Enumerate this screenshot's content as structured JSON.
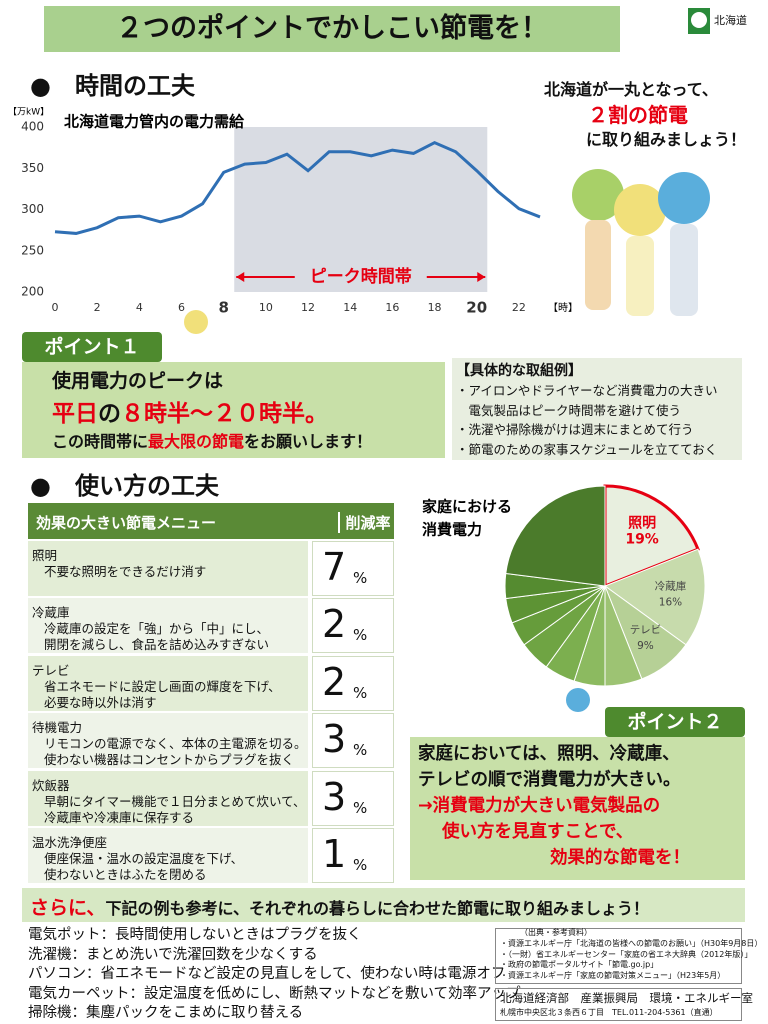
{
  "header": {
    "title": "２つのポイントでかしこい節電を！",
    "logo": "北海道"
  },
  "section1": {
    "heading": "●　時間の工夫"
  },
  "speech": {
    "line1": "北海道が一丸となって、",
    "highlight": "２割の節電",
    "line2": "に取り組みましょう！"
  },
  "chart_data": [
    {
      "type": "line",
      "title": "北海道電力管内の電力需給",
      "y_unit": "【万kW】",
      "x_unit": "【時】",
      "x": [
        0,
        1,
        2,
        3,
        4,
        5,
        6,
        7,
        8,
        9,
        10,
        11,
        12,
        13,
        14,
        15,
        16,
        17,
        18,
        19,
        20,
        21,
        22,
        23
      ],
      "values": [
        273,
        271,
        278,
        290,
        292,
        285,
        292,
        307,
        345,
        355,
        357,
        367,
        347,
        370,
        370,
        365,
        372,
        368,
        381,
        370,
        347,
        322,
        301,
        291
      ],
      "color": "#2f6fb4",
      "xlim": [
        0,
        23
      ],
      "ylim": [
        200,
        400
      ],
      "yticks": [
        200,
        250,
        300,
        350,
        400
      ],
      "xticks": [
        0,
        2,
        4,
        6,
        8,
        10,
        12,
        14,
        16,
        18,
        20,
        22
      ],
      "xticks_bold": [
        8,
        20
      ],
      "shade": {
        "from": 8.5,
        "to": 20.5,
        "label": "ピーク時間帯",
        "color": "#d9dce3",
        "label_color": "#e60012"
      }
    },
    {
      "type": "pie",
      "title_lines": [
        "家庭における",
        "消費電力"
      ],
      "categories": [
        "照明",
        "冷蔵庫",
        "テレビ",
        null,
        null,
        null,
        null,
        null,
        null,
        null,
        null
      ],
      "values": [
        19,
        16,
        9,
        6,
        5,
        5,
        5,
        4,
        4,
        4,
        23
      ],
      "value_labels": [
        "19%",
        "16%",
        "9%",
        null,
        null,
        null,
        null,
        null,
        null,
        null,
        null
      ],
      "colors": [
        "#e8efdf",
        "#c7dbac",
        "#b6d096",
        "#9dc373",
        "#8cba60",
        "#7caf4f",
        "#6fa443",
        "#669c3b",
        "#5d9334",
        "#558b30",
        "#4b7b2b"
      ],
      "highlight": 0,
      "highlight_color": "#e60012"
    }
  ],
  "point1": {
    "tag": "ポイント１",
    "line1": "使用電力のピークは",
    "line2": [
      {
        "text": "平日",
        "color": "#e60012"
      },
      {
        "text": "の",
        "color": "#111"
      },
      {
        "text": "８時半～２０時半。",
        "color": "#e60012"
      }
    ],
    "line3": [
      {
        "text": "この時間帯に",
        "color": "#111"
      },
      {
        "text": "最大限の節電",
        "color": "#e60012"
      },
      {
        "text": "をお願いします！",
        "color": "#111"
      }
    ]
  },
  "examples": {
    "title": "【具体的な取組例】",
    "items": [
      "・アイロンやドライヤーなど消費電力の大きい",
      "　電気製品はピーク時間帯を避けて使う",
      "・洗濯や掃除機がけは週末にまとめて行う",
      "・節電のための家事スケジュールを立てておく"
    ]
  },
  "section2": {
    "heading": "●　使い方の工夫"
  },
  "table": {
    "header": [
      "効果の大きい節電メニュー",
      "削減率"
    ],
    "rows": [
      {
        "name": "照明",
        "detail": [
          "不要な照明をできるだけ消す"
        ],
        "rate": 7,
        "unit": "%"
      },
      {
        "name": "冷蔵庫",
        "detail": [
          "冷蔵庫の設定を「強」から「中」にし、",
          "開閉を減らし、食品を詰め込みすぎない"
        ],
        "rate": 2,
        "unit": "%"
      },
      {
        "name": "テレビ",
        "detail": [
          "省エネモードに設定し画面の輝度を下げ、",
          "必要な時以外は消す"
        ],
        "rate": 2,
        "unit": "%"
      },
      {
        "name": "待機電力",
        "detail": [
          "リモコンの電源でなく、本体の主電源を切る。",
          "使わない機器はコンセントからプラグを抜く"
        ],
        "rate": 3,
        "unit": "%"
      },
      {
        "name": "炊飯器",
        "detail": [
          "早朝にタイマー機能で１日分まとめて炊いて、",
          "冷蔵庫や冷凍庫に保存する"
        ],
        "rate": 3,
        "unit": "%"
      },
      {
        "name": "温水洗浄便座",
        "detail": [
          "便座保温・温水の設定温度を下げ、",
          "使わないときはふたを閉める"
        ],
        "rate": 1,
        "unit": "%"
      }
    ]
  },
  "point2": {
    "tag": "ポイント２",
    "lines": [
      "家庭においては、照明、冷蔵庫、",
      "テレビの順で消費電力が大きい。"
    ],
    "red_lines": [
      "→消費電力が大きい電気製品の",
      "使い方を見直すことで、",
      "効果的な節電を！"
    ]
  },
  "more": {
    "lead": "さらに、",
    "text": "下記の例も参考に、それぞれの暮らしに合わせた節電に取り組みましょう！",
    "items": [
      "電気ポット：長時間使用しないときはプラグを抜く",
      "洗濯機：まとめ洗いで洗濯回数を少なくする",
      "パソコン：省エネモードなど設定の見直しをして、使わない時は電源オフ",
      "電気カーペット：設定温度を低めにし、断熱マットなどを敷いて効率アップ",
      "掃除機：集塵パックをこまめに取り替える"
    ]
  },
  "sources": {
    "title": "（出典・参考資料）",
    "items": [
      "・資源エネルギー庁「北海道の皆様への節電のお願い」（H30年9月8日）",
      "・（一財）省エネルギーセンター「家庭の省エネ大辞典（2012年版）」",
      "・政府の節電ポータルサイト「節電.go.jp」",
      "・資源エネルギー庁「家庭の節電対策メニュー」（H23年5月）"
    ]
  },
  "footer": {
    "org": "北海道経済部　産業振興局　環境・エネルギー室",
    "address": "札幌市中央区北３条西６丁目　TEL.011-204-5361（直通）"
  }
}
